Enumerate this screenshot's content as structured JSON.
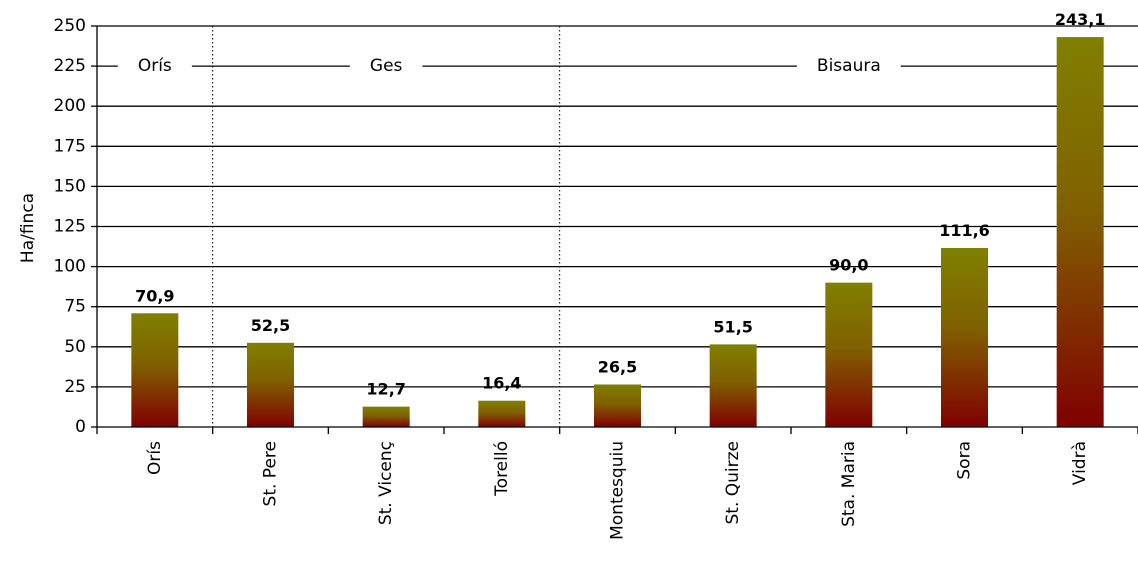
{
  "chart_data": {
    "type": "bar",
    "title": "",
    "xlabel": "",
    "ylabel": "Ha/finca",
    "ylim": [
      0,
      250
    ],
    "yticks": [
      0,
      25,
      50,
      75,
      100,
      125,
      150,
      175,
      200,
      225,
      250
    ],
    "grid": "horizontal",
    "categories": [
      "Orís",
      "St. Pere",
      "St. Vicenç",
      "Torelló",
      "Montesquiu",
      "St. Quirze",
      "Sta. Maria",
      "Sora",
      "Vidrà"
    ],
    "values": [
      70.9,
      52.5,
      12.7,
      16.4,
      26.5,
      51.5,
      90.0,
      111.6,
      243.1
    ],
    "data_labels": [
      "70,9",
      "52,5",
      "12,7",
      "16,4",
      "26,5",
      "51,5",
      "90,0",
      "111,6",
      "243,1"
    ],
    "groups": [
      {
        "name": "Orís",
        "categories": [
          "Orís"
        ]
      },
      {
        "name": "Ges",
        "categories": [
          "St. Pere",
          "St. Vicenç",
          "Torelló"
        ]
      },
      {
        "name": "Bisaura",
        "categories": [
          "Montesquiu",
          "St. Quirze",
          "Sta. Maria",
          "Sora",
          "Vidrà"
        ]
      }
    ],
    "colors": {
      "bar_top": "#808000",
      "bar_bottom": "#800000"
    }
  }
}
